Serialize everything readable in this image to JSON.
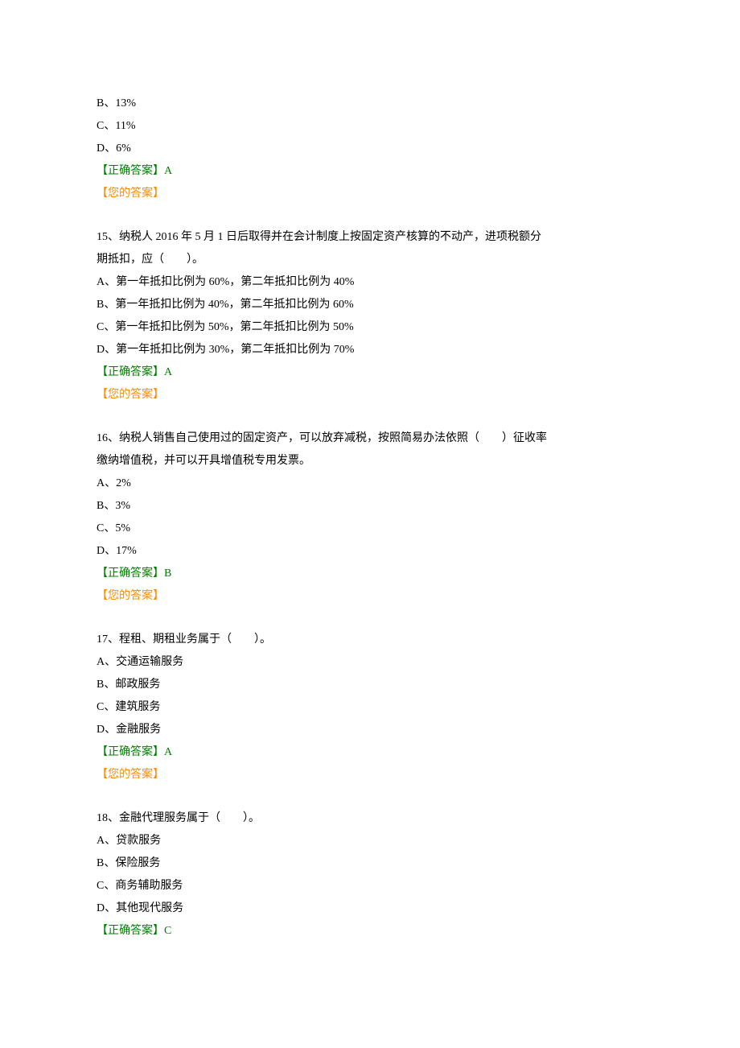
{
  "colors": {
    "text": "#000000",
    "correct": "#008000",
    "your": "#ff8c00",
    "background": "#ffffff"
  },
  "typography": {
    "font_family": "SimSun",
    "font_size_pt": 10.5,
    "line_height": 2.0
  },
  "labels": {
    "correct_prefix": "【正确答案】",
    "your_answer": "【您的答案】"
  },
  "q14_partial": {
    "option_b": "B、13%",
    "option_c": "C、11%",
    "option_d": "D、6%",
    "correct_answer": "A"
  },
  "q15": {
    "question_line1": "15、纳税人 2016 年 5 月 1 日后取得并在会计制度上按固定资产核算的不动产，进项税额分",
    "question_line2": "期抵扣，应（　　）。",
    "options": {
      "a": "A、第一年抵扣比例为 60%，第二年抵扣比例为 40%",
      "b": "B、第一年抵扣比例为 40%，第二年抵扣比例为 60%",
      "c": "C、第一年抵扣比例为 50%，第二年抵扣比例为 50%",
      "d": "D、第一年抵扣比例为 30%，第二年抵扣比例为 70%"
    },
    "correct_answer": "A"
  },
  "q16": {
    "question_line1": "16、纳税人销售自己使用过的固定资产，可以放弃减税，按照简易办法依照（　　）征收率",
    "question_line2": "缴纳增值税，并可以开具增值税专用发票。",
    "options": {
      "a": "A、2%",
      "b": "B、3%",
      "c": "C、5%",
      "d": "D、17%"
    },
    "correct_answer": "B"
  },
  "q17": {
    "question": "17、程租、期租业务属于（　　）。",
    "options": {
      "a": "A、交通运输服务",
      "b": "B、邮政服务",
      "c": "C、建筑服务",
      "d": "D、金融服务"
    },
    "correct_answer": "A"
  },
  "q18": {
    "question": "18、金融代理服务属于（　　）。",
    "options": {
      "a": "A、贷款服务",
      "b": "B、保险服务",
      "c": "C、商务辅助服务",
      "d": "D、其他现代服务"
    },
    "correct_answer": "C"
  }
}
